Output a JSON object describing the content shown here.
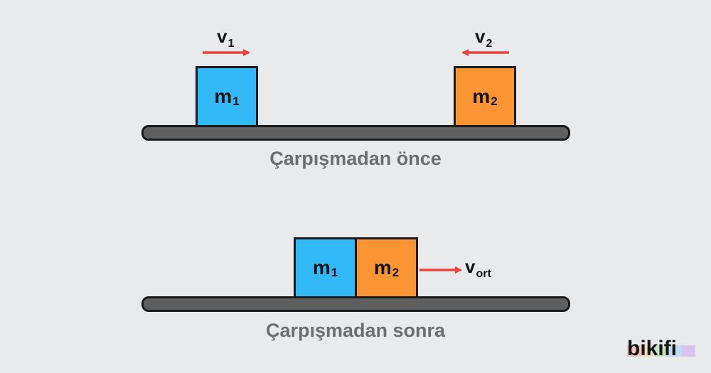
{
  "before": {
    "block1": {
      "base": "m",
      "sub": "1"
    },
    "block2": {
      "base": "m",
      "sub": "2"
    },
    "velocity1": {
      "base": "v",
      "sub": "1"
    },
    "velocity2": {
      "base": "v",
      "sub": "2"
    },
    "caption": "Çarpışmadan önce"
  },
  "after": {
    "block1": {
      "base": "m",
      "sub": "1"
    },
    "block2": {
      "base": "m",
      "sub": "2"
    },
    "velocity": {
      "base": "v",
      "sub": "ort"
    },
    "caption": "Çarpışmadan sonra"
  },
  "brand": {
    "logo": "bikifi"
  },
  "colors": {
    "block1": "#33b9f7",
    "block2": "#fb9533",
    "arrow": "#e8433f",
    "track": "#5f5f5f",
    "caption": "#6e6e6e"
  }
}
